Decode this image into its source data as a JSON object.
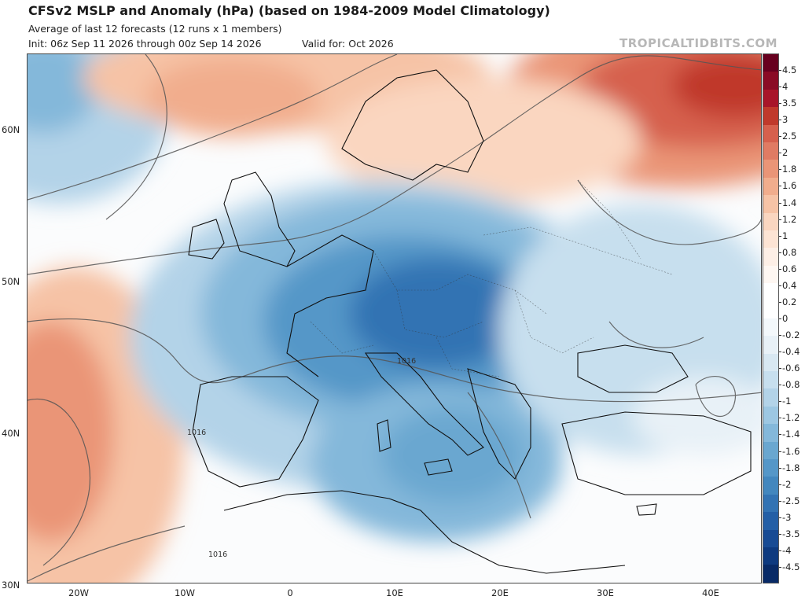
{
  "header": {
    "title": "CFSv2 MSLP and Anomaly (hPa) (based on 1984-2009 Model Climatology)",
    "subtitle": "Average of last 12 forecasts (12 runs x 1 members)",
    "init": "Init: 06z Sep 11 2026 through 00z Sep 14 2026",
    "valid": "Valid for: Oct 2026",
    "brand": "TROPICALTIDBITS.COM"
  },
  "axes": {
    "lat_labels": [
      "60N",
      "50N",
      "40N",
      "30N"
    ],
    "lon_labels": [
      "20W",
      "10W",
      "0",
      "10E",
      "20E",
      "30E",
      "40E"
    ]
  },
  "contour_labels": [
    "1016",
    "1016",
    "1016"
  ],
  "colorbar": {
    "ticks": [
      "4.5",
      "4",
      "3.5",
      "3",
      "2.5",
      "2",
      "1.8",
      "1.6",
      "1.4",
      "1.2",
      "1",
      "0.8",
      "0.6",
      "0.4",
      "0.2",
      "0",
      "-0.2",
      "-0.4",
      "-0.6",
      "-0.8",
      "-1",
      "-1.2",
      "-1.4",
      "-1.6",
      "-1.8",
      "-2",
      "-2.5",
      "-3",
      "-3.5",
      "-4",
      "-4.5"
    ],
    "colors": [
      "#67001f",
      "#8a0b25",
      "#a81529",
      "#c0392b",
      "#d6604d",
      "#e07b63",
      "#ea9577",
      "#f1ad8d",
      "#f6c3a6",
      "#fad6c0",
      "#fde4d4",
      "#fdefe6",
      "#fef7f2",
      "#ffffff",
      "#ffffff",
      "#f3f8fb",
      "#e8f1f7",
      "#d8e8f2",
      "#c7dfee",
      "#b3d3e8",
      "#9dc7e2",
      "#84b8da",
      "#6aa7d0",
      "#5597c8",
      "#4387be",
      "#3373b3",
      "#245fa6",
      "#184b94",
      "#0e3a7f",
      "#082a66"
    ]
  },
  "colors": {
    "positive_anomaly": "#d6604d",
    "negative_anomaly": "#4387be",
    "brand_gray": "#b7b7b7"
  }
}
